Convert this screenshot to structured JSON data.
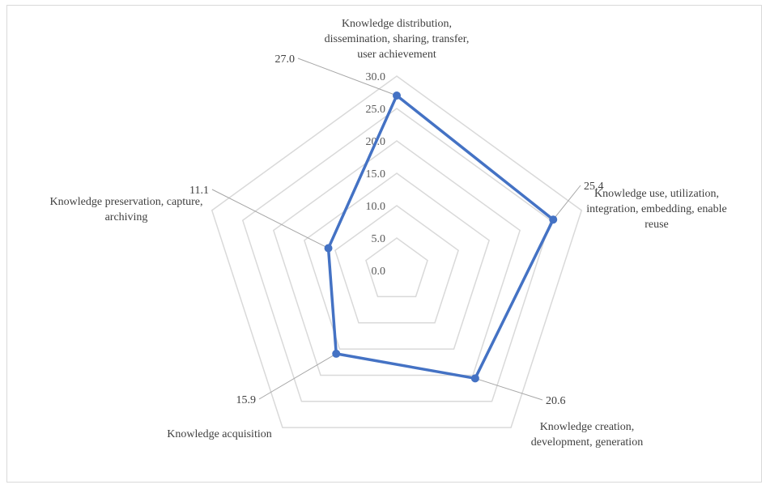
{
  "chart_data": {
    "type": "radar",
    "categories": [
      "Knowledge distribution,\ndissemination, sharing, transfer,\nuser achievement",
      "Knowledge use, utilization,\nintegration, embedding, enable\nreuse",
      "Knowledge creation,\ndevelopment, generation",
      "Knowledge acquisition",
      "Knowledge preservation, capture,\narchiving"
    ],
    "values": [
      27.0,
      25.4,
      20.6,
      15.9,
      11.1
    ],
    "value_labels": [
      "27.0",
      "25.4",
      "20.6",
      "15.9",
      "11.1"
    ],
    "rlim": [
      0,
      30
    ],
    "ticks": [
      "0.0",
      "5.0",
      "10.0",
      "15.0",
      "20.0",
      "25.0",
      "30.0"
    ],
    "grid": true,
    "legend": "none",
    "colors": {
      "series": "#4472c4",
      "grid": "#d9d9d9",
      "leader": "#a6a6a6"
    }
  }
}
